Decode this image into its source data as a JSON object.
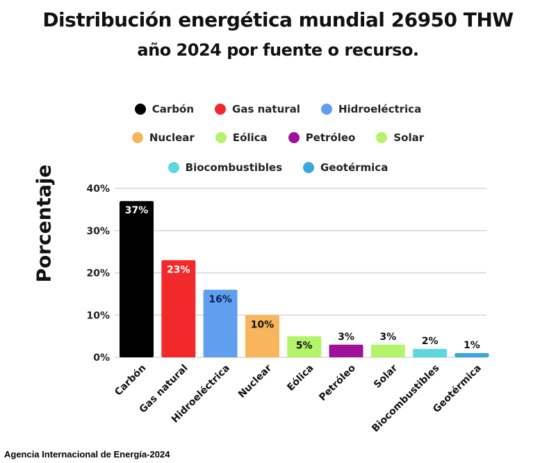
{
  "chart_data": {
    "type": "bar",
    "title": "Distribución energética mundial 26950 THW",
    "subtitle": "año 2024 por fuente o recurso.",
    "xlabel": "",
    "ylabel": "Porcentaje",
    "ylim": [
      0,
      40
    ],
    "yticks": [
      0,
      10,
      20,
      30,
      40
    ],
    "ytick_labels": [
      "0%",
      "10%",
      "20%",
      "30%",
      "40%"
    ],
    "grid": true,
    "legend_position": "top-center",
    "categories": [
      "Carbón",
      "Gas natural",
      "Hidroeléctrica",
      "Nuclear",
      "Eólica",
      "Petróleo",
      "Solar",
      "Biocombustibles",
      "Geotérmica"
    ],
    "values": [
      37,
      23,
      16,
      10,
      5,
      3,
      3,
      2,
      1
    ],
    "data_labels": [
      "37%",
      "23%",
      "16%",
      "10%",
      "5%",
      "3%",
      "3%",
      "2%",
      "1%"
    ],
    "colors": [
      "#000000",
      "#f2292a",
      "#609ff0",
      "#f8b55c",
      "#b3f46a",
      "#a0119a",
      "#b3f46a",
      "#5fd7de",
      "#3aa6dc"
    ],
    "legend": [
      {
        "label": "Carbón",
        "color": "#000000"
      },
      {
        "label": "Gas natural",
        "color": "#f2292a"
      },
      {
        "label": "Hidroeléctrica",
        "color": "#609ff0"
      },
      {
        "label": "Nuclear",
        "color": "#f8b55c"
      },
      {
        "label": "Eólica",
        "color": "#b3f46a"
      },
      {
        "label": "Petróleo",
        "color": "#a0119a"
      },
      {
        "label": "Solar",
        "color": "#b3f46a"
      },
      {
        "label": "Biocombustibles",
        "color": "#5fd7de"
      },
      {
        "label": "Geotérmica",
        "color": "#3aa6dc"
      }
    ]
  },
  "source": "Agencia Internacional de Energía-2024"
}
